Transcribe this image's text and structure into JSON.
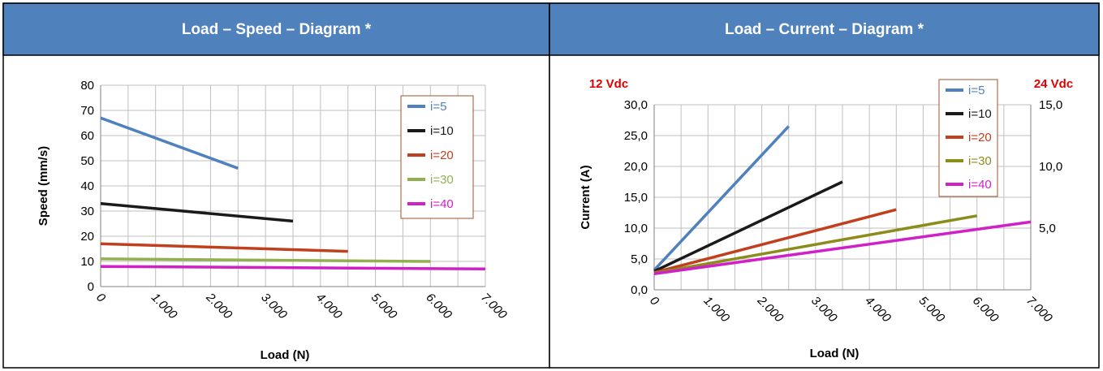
{
  "colors": {
    "header_bg": "#4F81BD",
    "header_text": "#FFFFFF",
    "border": "#000000",
    "grid": "#BFBFBF",
    "legend_border": "#A0522D",
    "secondary_label": "#E00000"
  },
  "panels": [
    {
      "title": "Load – Speed – Diagram *"
    },
    {
      "title": "Load – Current – Diagram *"
    }
  ],
  "chart_data": [
    {
      "type": "line",
      "xlabel": "Load (N)",
      "ylabel": "Speed (mm/s)",
      "xlim": [
        0,
        7000
      ],
      "ylim": [
        0,
        80
      ],
      "x_ticks": [
        0,
        1000,
        2000,
        3000,
        4000,
        5000,
        6000,
        7000
      ],
      "x_tick_labels": [
        "0",
        "1.000",
        "2.000",
        "3.000",
        "4.000",
        "5.000",
        "6.000",
        "7.000"
      ],
      "y_ticks": [
        0,
        10,
        20,
        30,
        40,
        50,
        60,
        70,
        80
      ],
      "y_tick_labels": [
        "0",
        "10",
        "20",
        "30",
        "40",
        "50",
        "60",
        "70",
        "80"
      ],
      "grid": true,
      "legend_position": "top-right",
      "series": [
        {
          "name": "i=5",
          "color": "#4F81BD",
          "x": [
            0,
            2500
          ],
          "y": [
            67,
            47
          ]
        },
        {
          "name": "i=10",
          "color": "#1A1A1A",
          "x": [
            0,
            3500
          ],
          "y": [
            33,
            26
          ]
        },
        {
          "name": "i=20",
          "color": "#C0401E",
          "x": [
            0,
            4500
          ],
          "y": [
            17,
            14
          ]
        },
        {
          "name": "i=30",
          "color": "#92B050",
          "x": [
            0,
            6000
          ],
          "y": [
            11,
            10
          ]
        },
        {
          "name": "i=40",
          "color": "#D020C8",
          "x": [
            0,
            7000
          ],
          "y": [
            8,
            7
          ]
        }
      ]
    },
    {
      "type": "line",
      "xlabel": "Load (N)",
      "ylabel": "Current (A)",
      "y_left_title": "12 Vdc",
      "y_right_title": "24 Vdc",
      "xlim": [
        0,
        7000
      ],
      "ylim": [
        0,
        30
      ],
      "y2lim": [
        0,
        15
      ],
      "x_ticks": [
        0,
        1000,
        2000,
        3000,
        4000,
        5000,
        6000,
        7000
      ],
      "x_tick_labels": [
        "0",
        "1.000",
        "2.000",
        "3.000",
        "4.000",
        "5.000",
        "6.000",
        "7.000"
      ],
      "y_ticks": [
        0,
        5,
        10,
        15,
        20,
        25,
        30
      ],
      "y_tick_labels": [
        "0,0",
        "5,0",
        "10,0",
        "15,0",
        "20,0",
        "25,0",
        "30,0"
      ],
      "y2_ticks": [
        5,
        10,
        15
      ],
      "y2_tick_labels": [
        "5,0",
        "10,0",
        "15,0"
      ],
      "grid": true,
      "legend_position": "top-right",
      "series": [
        {
          "name": "i=5",
          "color": "#4F81BD",
          "x": [
            0,
            2500
          ],
          "y": [
            3.2,
            26.5
          ]
        },
        {
          "name": "i=10",
          "color": "#1A1A1A",
          "x": [
            0,
            3500
          ],
          "y": [
            3.0,
            17.5
          ]
        },
        {
          "name": "i=20",
          "color": "#C0401E",
          "x": [
            0,
            4500
          ],
          "y": [
            2.8,
            13.0
          ]
        },
        {
          "name": "i=30",
          "color": "#8C8C1C",
          "x": [
            0,
            6000
          ],
          "y": [
            2.7,
            12.0
          ]
        },
        {
          "name": "i=40",
          "color": "#D020C8",
          "x": [
            0,
            7000
          ],
          "y": [
            2.6,
            11.0
          ]
        }
      ]
    }
  ]
}
